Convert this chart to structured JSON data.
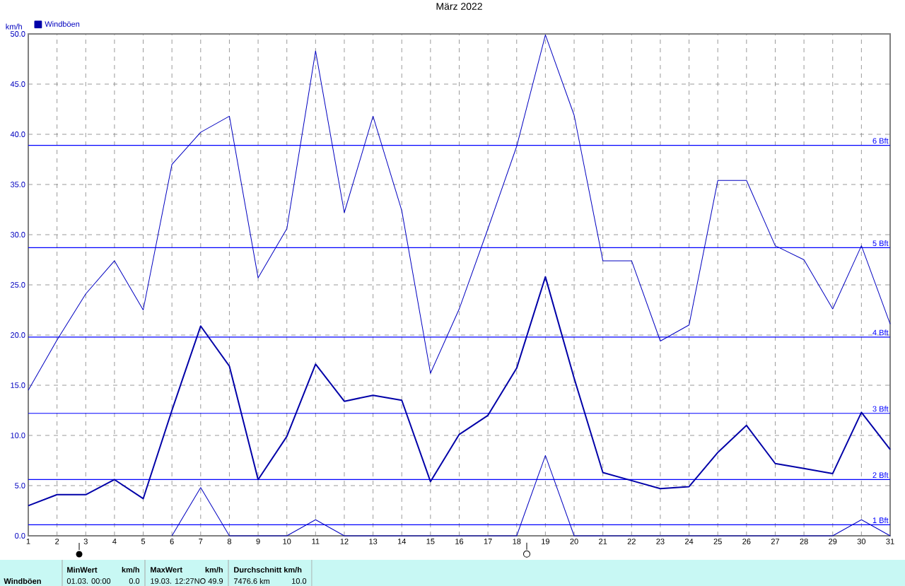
{
  "chart_data": {
    "type": "line",
    "title": "März 2022",
    "ylabel": "km/h",
    "x": [
      1,
      2,
      3,
      4,
      5,
      6,
      7,
      8,
      9,
      10,
      11,
      12,
      13,
      14,
      15,
      16,
      17,
      18,
      19,
      20,
      21,
      22,
      23,
      24,
      25,
      26,
      27,
      28,
      29,
      30,
      31
    ],
    "series": [
      {
        "name": "Windböen",
        "color": "#0000a8",
        "values": [
          3.0,
          4.1,
          4.1,
          5.6,
          3.7,
          12.5,
          20.9,
          16.9,
          5.6,
          9.9,
          17.1,
          13.4,
          14.0,
          13.5,
          5.4,
          10.1,
          12.0,
          16.7,
          25.8,
          15.7,
          6.3,
          5.5,
          4.7,
          4.9,
          8.3,
          11.0,
          7.2,
          6.7,
          6.2,
          12.3,
          8.6
        ]
      },
      {
        "color": "#0000c0",
        "values": [
          14.5,
          19.5,
          24.1,
          27.4,
          22.5,
          37.0,
          40.2,
          41.8,
          25.7,
          30.6,
          48.3,
          32.2,
          41.8,
          32.4,
          16.2,
          22.6,
          30.6,
          38.8,
          49.9,
          41.9,
          27.4,
          27.4,
          19.4,
          21.0,
          35.4,
          35.4,
          28.9,
          27.5,
          22.6,
          28.9,
          21.1
        ]
      },
      {
        "color": "#0000c0",
        "values": [
          null,
          null,
          null,
          null,
          null,
          0,
          4.8,
          0,
          null,
          0,
          1.6,
          0,
          null,
          null,
          null,
          null,
          null,
          0,
          8.0,
          0,
          null,
          null,
          null,
          null,
          null,
          null,
          null,
          null,
          0,
          1.6,
          0
        ]
      }
    ],
    "xlim": [
      1,
      31
    ],
    "ylim": [
      0,
      50
    ],
    "xticks": [
      1,
      2,
      3,
      4,
      5,
      6,
      7,
      8,
      9,
      10,
      11,
      12,
      13,
      14,
      15,
      16,
      17,
      18,
      19,
      20,
      21,
      22,
      23,
      24,
      25,
      26,
      27,
      28,
      29,
      30,
      31
    ],
    "yticks": [
      {
        "value": 0,
        "label": "0.0"
      },
      {
        "value": 5,
        "label": "5.0"
      },
      {
        "value": 10,
        "label": "10.0"
      },
      {
        "value": 15,
        "label": "15.0"
      },
      {
        "value": 20,
        "label": "20.0"
      },
      {
        "value": 25,
        "label": "25.0"
      },
      {
        "value": 30,
        "label": "30.0"
      },
      {
        "value": 35,
        "label": "35.0"
      },
      {
        "value": 40,
        "label": "40.0"
      },
      {
        "value": 45,
        "label": "45.0"
      },
      {
        "value": 50,
        "label": "50.0"
      }
    ],
    "ref_lines": [
      {
        "axis": "y",
        "value": 38.9,
        "label": "6 Bft",
        "color": "#0000ff"
      },
      {
        "axis": "y",
        "value": 28.7,
        "label": "5 Bft",
        "color": "#0000ff"
      },
      {
        "axis": "y",
        "value": 19.8,
        "label": "4 Bft",
        "color": "#0000ff"
      },
      {
        "axis": "y",
        "value": 12.2,
        "label": "3 Bft",
        "color": "#0000ff"
      },
      {
        "axis": "y",
        "value": 5.6,
        "label": "2 Bft",
        "color": "#0000ff"
      },
      {
        "axis": "y",
        "value": 1.1,
        "label": "1 Bft",
        "color": "#0000ff"
      }
    ],
    "grid": true,
    "legend": "top left",
    "annotations": [
      "Windböen",
      "MinWert",
      "km/h",
      "01.03. 00:00",
      "0.0",
      "MaxWert",
      "km/h",
      "19.03. 12:27",
      "NO 49.9",
      "Durchschnitt km/h",
      "7476.6 km",
      "10.0"
    ]
  }
}
